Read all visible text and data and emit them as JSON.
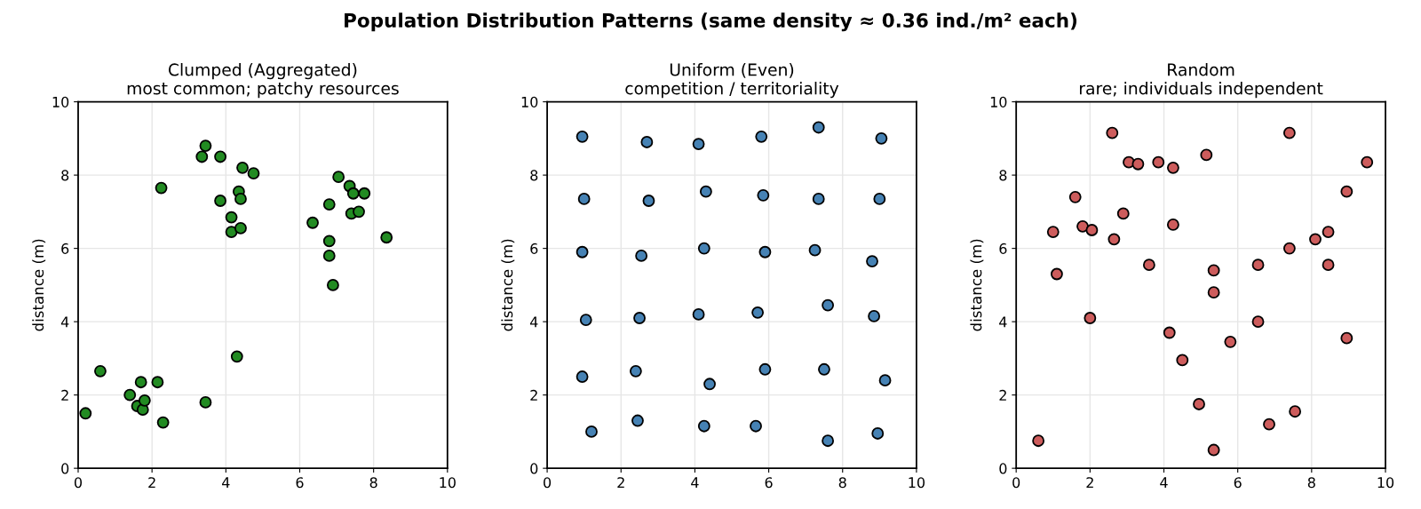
{
  "chart_data": [
    {
      "type": "scatter",
      "title": "Clumped (Aggregated)",
      "subtitle": "most common; patchy resources",
      "ylabel": "distance (m)",
      "annotations": [
        "Population Distribution Patterns (same density ≈ 0.36 ind./m² each)"
      ],
      "xlim": [
        0,
        10
      ],
      "ylim": [
        0,
        10
      ],
      "xticks": [
        0,
        2,
        4,
        6,
        8,
        10
      ],
      "yticks": [
        0,
        2,
        4,
        6,
        8,
        10
      ],
      "grid": true,
      "marker": "circle",
      "series": [
        {
          "color": "#228b22",
          "x": [
            0.2,
            0.6,
            1.4,
            1.6,
            1.7,
            1.75,
            1.8,
            2.15,
            2.3,
            3.45,
            4.3,
            2.25,
            3.35,
            3.45,
            3.85,
            4.45,
            4.75,
            3.85,
            4.35,
            4.4,
            4.15,
            4.15,
            4.4,
            7.05,
            7.35,
            7.45,
            7.75,
            7.4,
            7.6,
            6.8,
            6.35,
            6.8,
            6.8,
            6.9,
            8.35
          ],
          "values": [
            1.5,
            2.65,
            2.0,
            1.7,
            2.35,
            1.6,
            1.85,
            2.35,
            1.25,
            1.8,
            3.05,
            7.65,
            8.5,
            8.8,
            8.5,
            8.2,
            8.05,
            7.3,
            7.55,
            7.35,
            6.85,
            6.45,
            6.55,
            7.95,
            7.7,
            7.5,
            7.5,
            6.95,
            7.0,
            7.2,
            6.7,
            6.2,
            5.8,
            5.0,
            6.3
          ]
        }
      ]
    },
    {
      "type": "scatter",
      "title": "Uniform (Even)",
      "subtitle": "competition / territoriality",
      "ylabel": "distance (m)",
      "xlim": [
        0,
        10
      ],
      "ylim": [
        0,
        10
      ],
      "xticks": [
        0,
        2,
        4,
        6,
        8,
        10
      ],
      "yticks": [
        0,
        2,
        4,
        6,
        8,
        10
      ],
      "grid": true,
      "marker": "circle",
      "series": [
        {
          "color": "#4682b4",
          "x": [
            0.95,
            2.7,
            4.1,
            5.8,
            7.35,
            9.05,
            1.0,
            2.75,
            4.3,
            5.85,
            7.35,
            9.0,
            0.95,
            2.55,
            4.25,
            5.9,
            7.25,
            8.8,
            1.05,
            2.5,
            4.1,
            5.7,
            7.6,
            8.85,
            0.95,
            2.4,
            4.4,
            5.9,
            7.5,
            9.15,
            1.2,
            2.45,
            4.25,
            5.65,
            7.6,
            8.95
          ],
          "values": [
            9.05,
            8.9,
            8.85,
            9.05,
            9.3,
            9.0,
            7.35,
            7.3,
            7.55,
            7.45,
            7.35,
            7.35,
            5.9,
            5.8,
            6.0,
            5.9,
            5.95,
            5.65,
            4.05,
            4.1,
            4.2,
            4.25,
            4.45,
            4.15,
            2.5,
            2.65,
            2.3,
            2.7,
            2.7,
            2.4,
            1.0,
            1.3,
            1.15,
            1.15,
            0.75,
            0.95
          ]
        }
      ]
    },
    {
      "type": "scatter",
      "title": "Random",
      "subtitle": "rare; individuals independent",
      "ylabel": "distance (m)",
      "xlim": [
        0,
        10
      ],
      "ylim": [
        0,
        10
      ],
      "xticks": [
        0,
        2,
        4,
        6,
        8,
        10
      ],
      "yticks": [
        0,
        2,
        4,
        6,
        8,
        10
      ],
      "grid": true,
      "marker": "circle",
      "series": [
        {
          "color": "#cd5c5c",
          "x": [
            0.6,
            1.0,
            1.1,
            1.6,
            1.8,
            2.05,
            2.0,
            2.6,
            2.65,
            2.9,
            3.05,
            3.3,
            3.85,
            4.25,
            4.25,
            3.6,
            4.15,
            4.5,
            5.15,
            5.35,
            5.35,
            4.95,
            5.35,
            5.8,
            6.55,
            6.55,
            6.85,
            7.4,
            7.4,
            7.55,
            8.1,
            8.45,
            8.45,
            8.95,
            8.95,
            9.5
          ],
          "values": [
            0.75,
            6.45,
            5.3,
            7.4,
            6.6,
            6.5,
            4.1,
            9.15,
            6.25,
            6.95,
            8.35,
            8.3,
            8.35,
            8.2,
            6.65,
            5.55,
            3.7,
            2.95,
            8.55,
            5.4,
            4.8,
            1.75,
            0.5,
            3.45,
            5.55,
            4.0,
            1.2,
            9.15,
            6.0,
            1.55,
            6.25,
            6.45,
            5.55,
            7.55,
            3.55,
            8.35
          ]
        }
      ]
    }
  ]
}
